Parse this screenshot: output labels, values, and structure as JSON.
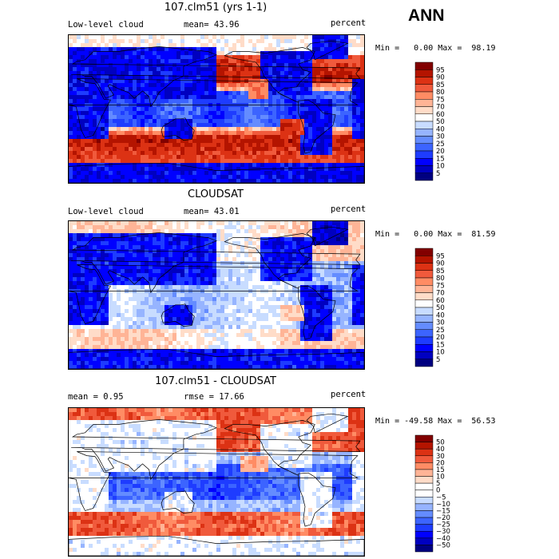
{
  "season_label": "ANN",
  "panels": [
    {
      "title": "107.clm51 (yrs 1-1)",
      "left_label": "Low-level cloud",
      "mid_label": "mean=  43.96",
      "right_label": "percent",
      "minmax": "Min =   0.00 Max =  98.19"
    },
    {
      "title": "CLOUDSAT",
      "left_label": "Low-level cloud",
      "mid_label": "mean=  43.01",
      "right_label": "percent",
      "minmax": "Min =   0.00 Max =  81.59"
    },
    {
      "title": "107.clm51 - CLOUDSAT",
      "left_label": "mean =   0.95",
      "mid_label": "rmse =  17.66",
      "right_label": "percent",
      "minmax": "Min = -49.58 Max =  56.53"
    }
  ],
  "chart_data": [
    {
      "type": "heatmap",
      "title": "107.clm51 (yrs 1-1)",
      "variable": "Low-level cloud",
      "units": "percent",
      "mean": 43.96,
      "min": 0.0,
      "max": 98.19,
      "colorbar": {
        "levels": [
          5,
          10,
          15,
          20,
          25,
          30,
          40,
          50,
          60,
          70,
          75,
          80,
          85,
          90,
          95
        ],
        "colors": [
          "#000080",
          "#0000c0",
          "#0000ff",
          "#1e3cff",
          "#3c64ff",
          "#648cff",
          "#96b4ff",
          "#c8dcff",
          "#ffffff",
          "#ffdcc8",
          "#ffb496",
          "#ff8c64",
          "#f05a3c",
          "#dc3214",
          "#b41400",
          "#820000"
        ]
      }
    },
    {
      "type": "heatmap",
      "title": "CLOUDSAT",
      "variable": "Low-level cloud",
      "units": "percent",
      "mean": 43.01,
      "min": 0.0,
      "max": 81.59,
      "colorbar": {
        "levels": [
          5,
          10,
          15,
          20,
          25,
          30,
          40,
          50,
          60,
          70,
          75,
          80,
          85,
          90,
          95
        ],
        "colors": [
          "#000080",
          "#0000c0",
          "#0000ff",
          "#1e3cff",
          "#3c64ff",
          "#648cff",
          "#96b4ff",
          "#c8dcff",
          "#ffffff",
          "#ffdcc8",
          "#ffb496",
          "#ff8c64",
          "#f05a3c",
          "#dc3214",
          "#b41400",
          "#820000"
        ]
      }
    },
    {
      "type": "heatmap",
      "title": "107.clm51 - CLOUDSAT",
      "units": "percent",
      "mean": 0.95,
      "rmse": 17.66,
      "min": -49.58,
      "max": 56.53,
      "colorbar": {
        "levels": [
          -50,
          -40,
          -30,
          -25,
          -20,
          -15,
          -10,
          -5,
          0,
          5,
          10,
          15,
          20,
          30,
          40,
          50
        ],
        "colors": [
          "#000080",
          "#0000c0",
          "#0000ff",
          "#1e3cff",
          "#3c64ff",
          "#648cff",
          "#96b4ff",
          "#c8dcff",
          "#ffffff",
          "#ffffff",
          "#ffdcc8",
          "#ffb496",
          "#ff8c64",
          "#f05a3c",
          "#dc3214",
          "#b41400",
          "#820000"
        ]
      }
    }
  ]
}
